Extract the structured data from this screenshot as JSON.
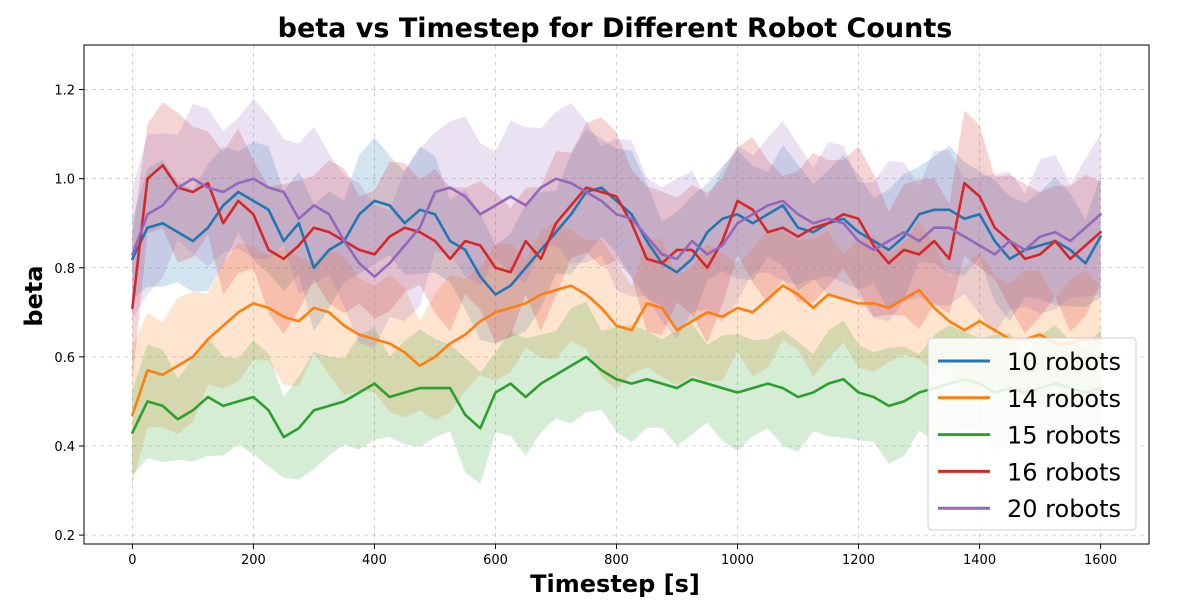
{
  "chart_data": {
    "type": "line",
    "title": "beta vs Timestep for Different Robot Counts",
    "xlabel": "Timestep [s]",
    "ylabel": "beta",
    "xlim": [
      -80,
      1680
    ],
    "ylim": [
      0.18,
      1.3
    ],
    "xticks": [
      0,
      200,
      400,
      600,
      800,
      1000,
      1200,
      1400,
      1600
    ],
    "xtick_labels": [
      "0",
      "200",
      "400",
      "600",
      "800",
      "1000",
      "1200",
      "1400",
      "1600"
    ],
    "yticks": [
      0.2,
      0.4,
      0.6,
      0.8,
      1.0,
      1.2
    ],
    "ytick_labels": [
      "0.2",
      "0.4",
      "0.6",
      "0.8",
      "1.0",
      "1.2"
    ],
    "grid": true,
    "legend_position": "lower-right",
    "x": [
      0,
      25,
      50,
      75,
      100,
      125,
      150,
      175,
      200,
      225,
      250,
      275,
      300,
      325,
      350,
      375,
      400,
      425,
      450,
      475,
      500,
      525,
      550,
      575,
      600,
      625,
      650,
      675,
      700,
      725,
      750,
      775,
      800,
      825,
      850,
      875,
      900,
      925,
      950,
      975,
      1000,
      1025,
      1050,
      1075,
      1100,
      1125,
      1150,
      1175,
      1200,
      1225,
      1250,
      1275,
      1300,
      1325,
      1350,
      1375,
      1400,
      1425,
      1450,
      1475,
      1500,
      1525,
      1550,
      1575,
      1600
    ],
    "series": [
      {
        "name": "10 robots",
        "color": "#1f77b4",
        "values": [
          0.82,
          0.89,
          0.9,
          0.88,
          0.86,
          0.89,
          0.94,
          0.97,
          0.95,
          0.93,
          0.86,
          0.9,
          0.8,
          0.84,
          0.86,
          0.92,
          0.95,
          0.94,
          0.9,
          0.93,
          0.92,
          0.86,
          0.84,
          0.78,
          0.74,
          0.76,
          0.8,
          0.84,
          0.88,
          0.92,
          0.97,
          0.98,
          0.95,
          0.92,
          0.86,
          0.81,
          0.79,
          0.82,
          0.88,
          0.91,
          0.92,
          0.9,
          0.92,
          0.94,
          0.89,
          0.88,
          0.9,
          0.91,
          0.88,
          0.86,
          0.84,
          0.87,
          0.92,
          0.93,
          0.93,
          0.91,
          0.92,
          0.86,
          0.82,
          0.84,
          0.85,
          0.86,
          0.84,
          0.81,
          0.87
        ]
      },
      {
        "name": "14 robots",
        "color": "#ff7f0e",
        "values": [
          0.47,
          0.57,
          0.56,
          0.58,
          0.6,
          0.64,
          0.67,
          0.7,
          0.72,
          0.71,
          0.69,
          0.68,
          0.71,
          0.7,
          0.67,
          0.65,
          0.64,
          0.63,
          0.61,
          0.58,
          0.6,
          0.63,
          0.65,
          0.68,
          0.7,
          0.71,
          0.72,
          0.74,
          0.75,
          0.76,
          0.74,
          0.71,
          0.67,
          0.66,
          0.72,
          0.71,
          0.66,
          0.68,
          0.7,
          0.69,
          0.71,
          0.7,
          0.73,
          0.76,
          0.74,
          0.71,
          0.74,
          0.73,
          0.72,
          0.72,
          0.71,
          0.73,
          0.75,
          0.71,
          0.68,
          0.66,
          0.68,
          0.66,
          0.64,
          0.64,
          0.65,
          0.63,
          0.63,
          0.64,
          0.64
        ]
      },
      {
        "name": "15 robots",
        "color": "#2ca02c",
        "values": [
          0.43,
          0.5,
          0.49,
          0.46,
          0.48,
          0.51,
          0.49,
          0.5,
          0.51,
          0.48,
          0.42,
          0.44,
          0.48,
          0.49,
          0.5,
          0.52,
          0.54,
          0.51,
          0.52,
          0.53,
          0.53,
          0.53,
          0.47,
          0.44,
          0.52,
          0.54,
          0.51,
          0.54,
          0.56,
          0.58,
          0.6,
          0.57,
          0.55,
          0.54,
          0.55,
          0.54,
          0.53,
          0.55,
          0.54,
          0.53,
          0.52,
          0.53,
          0.54,
          0.53,
          0.51,
          0.52,
          0.54,
          0.55,
          0.52,
          0.51,
          0.49,
          0.5,
          0.52,
          0.53,
          0.54,
          0.55,
          0.54,
          0.52,
          0.53,
          0.52,
          0.53,
          0.54,
          0.53,
          0.52,
          0.53
        ]
      },
      {
        "name": "16 robots",
        "color": "#d62728",
        "values": [
          0.71,
          1.0,
          1.03,
          0.98,
          0.97,
          0.99,
          0.9,
          0.95,
          0.92,
          0.84,
          0.82,
          0.85,
          0.89,
          0.88,
          0.86,
          0.84,
          0.83,
          0.87,
          0.89,
          0.88,
          0.86,
          0.82,
          0.86,
          0.85,
          0.8,
          0.79,
          0.86,
          0.82,
          0.9,
          0.94,
          0.98,
          0.97,
          0.96,
          0.9,
          0.82,
          0.81,
          0.84,
          0.84,
          0.8,
          0.86,
          0.95,
          0.93,
          0.88,
          0.89,
          0.87,
          0.89,
          0.9,
          0.92,
          0.91,
          0.85,
          0.81,
          0.84,
          0.83,
          0.86,
          0.82,
          0.99,
          0.96,
          0.89,
          0.86,
          0.82,
          0.83,
          0.86,
          0.82,
          0.85,
          0.88
        ]
      },
      {
        "name": "20 robots",
        "color": "#9467bd",
        "values": [
          0.83,
          0.92,
          0.94,
          0.98,
          1.0,
          0.98,
          0.97,
          0.99,
          1.0,
          0.98,
          0.97,
          0.91,
          0.94,
          0.92,
          0.86,
          0.81,
          0.78,
          0.81,
          0.85,
          0.89,
          0.97,
          0.98,
          0.96,
          0.92,
          0.94,
          0.96,
          0.94,
          0.98,
          1.0,
          0.99,
          0.97,
          0.95,
          0.92,
          0.91,
          0.87,
          0.83,
          0.82,
          0.86,
          0.83,
          0.85,
          0.9,
          0.92,
          0.94,
          0.95,
          0.92,
          0.9,
          0.91,
          0.9,
          0.86,
          0.84,
          0.86,
          0.88,
          0.86,
          0.89,
          0.89,
          0.87,
          0.85,
          0.83,
          0.86,
          0.84,
          0.87,
          0.88,
          0.86,
          0.89,
          0.92
        ]
      }
    ],
    "band_half_widths": [
      0.12,
      0.13,
      0.11,
      0.14,
      0.15
    ]
  }
}
